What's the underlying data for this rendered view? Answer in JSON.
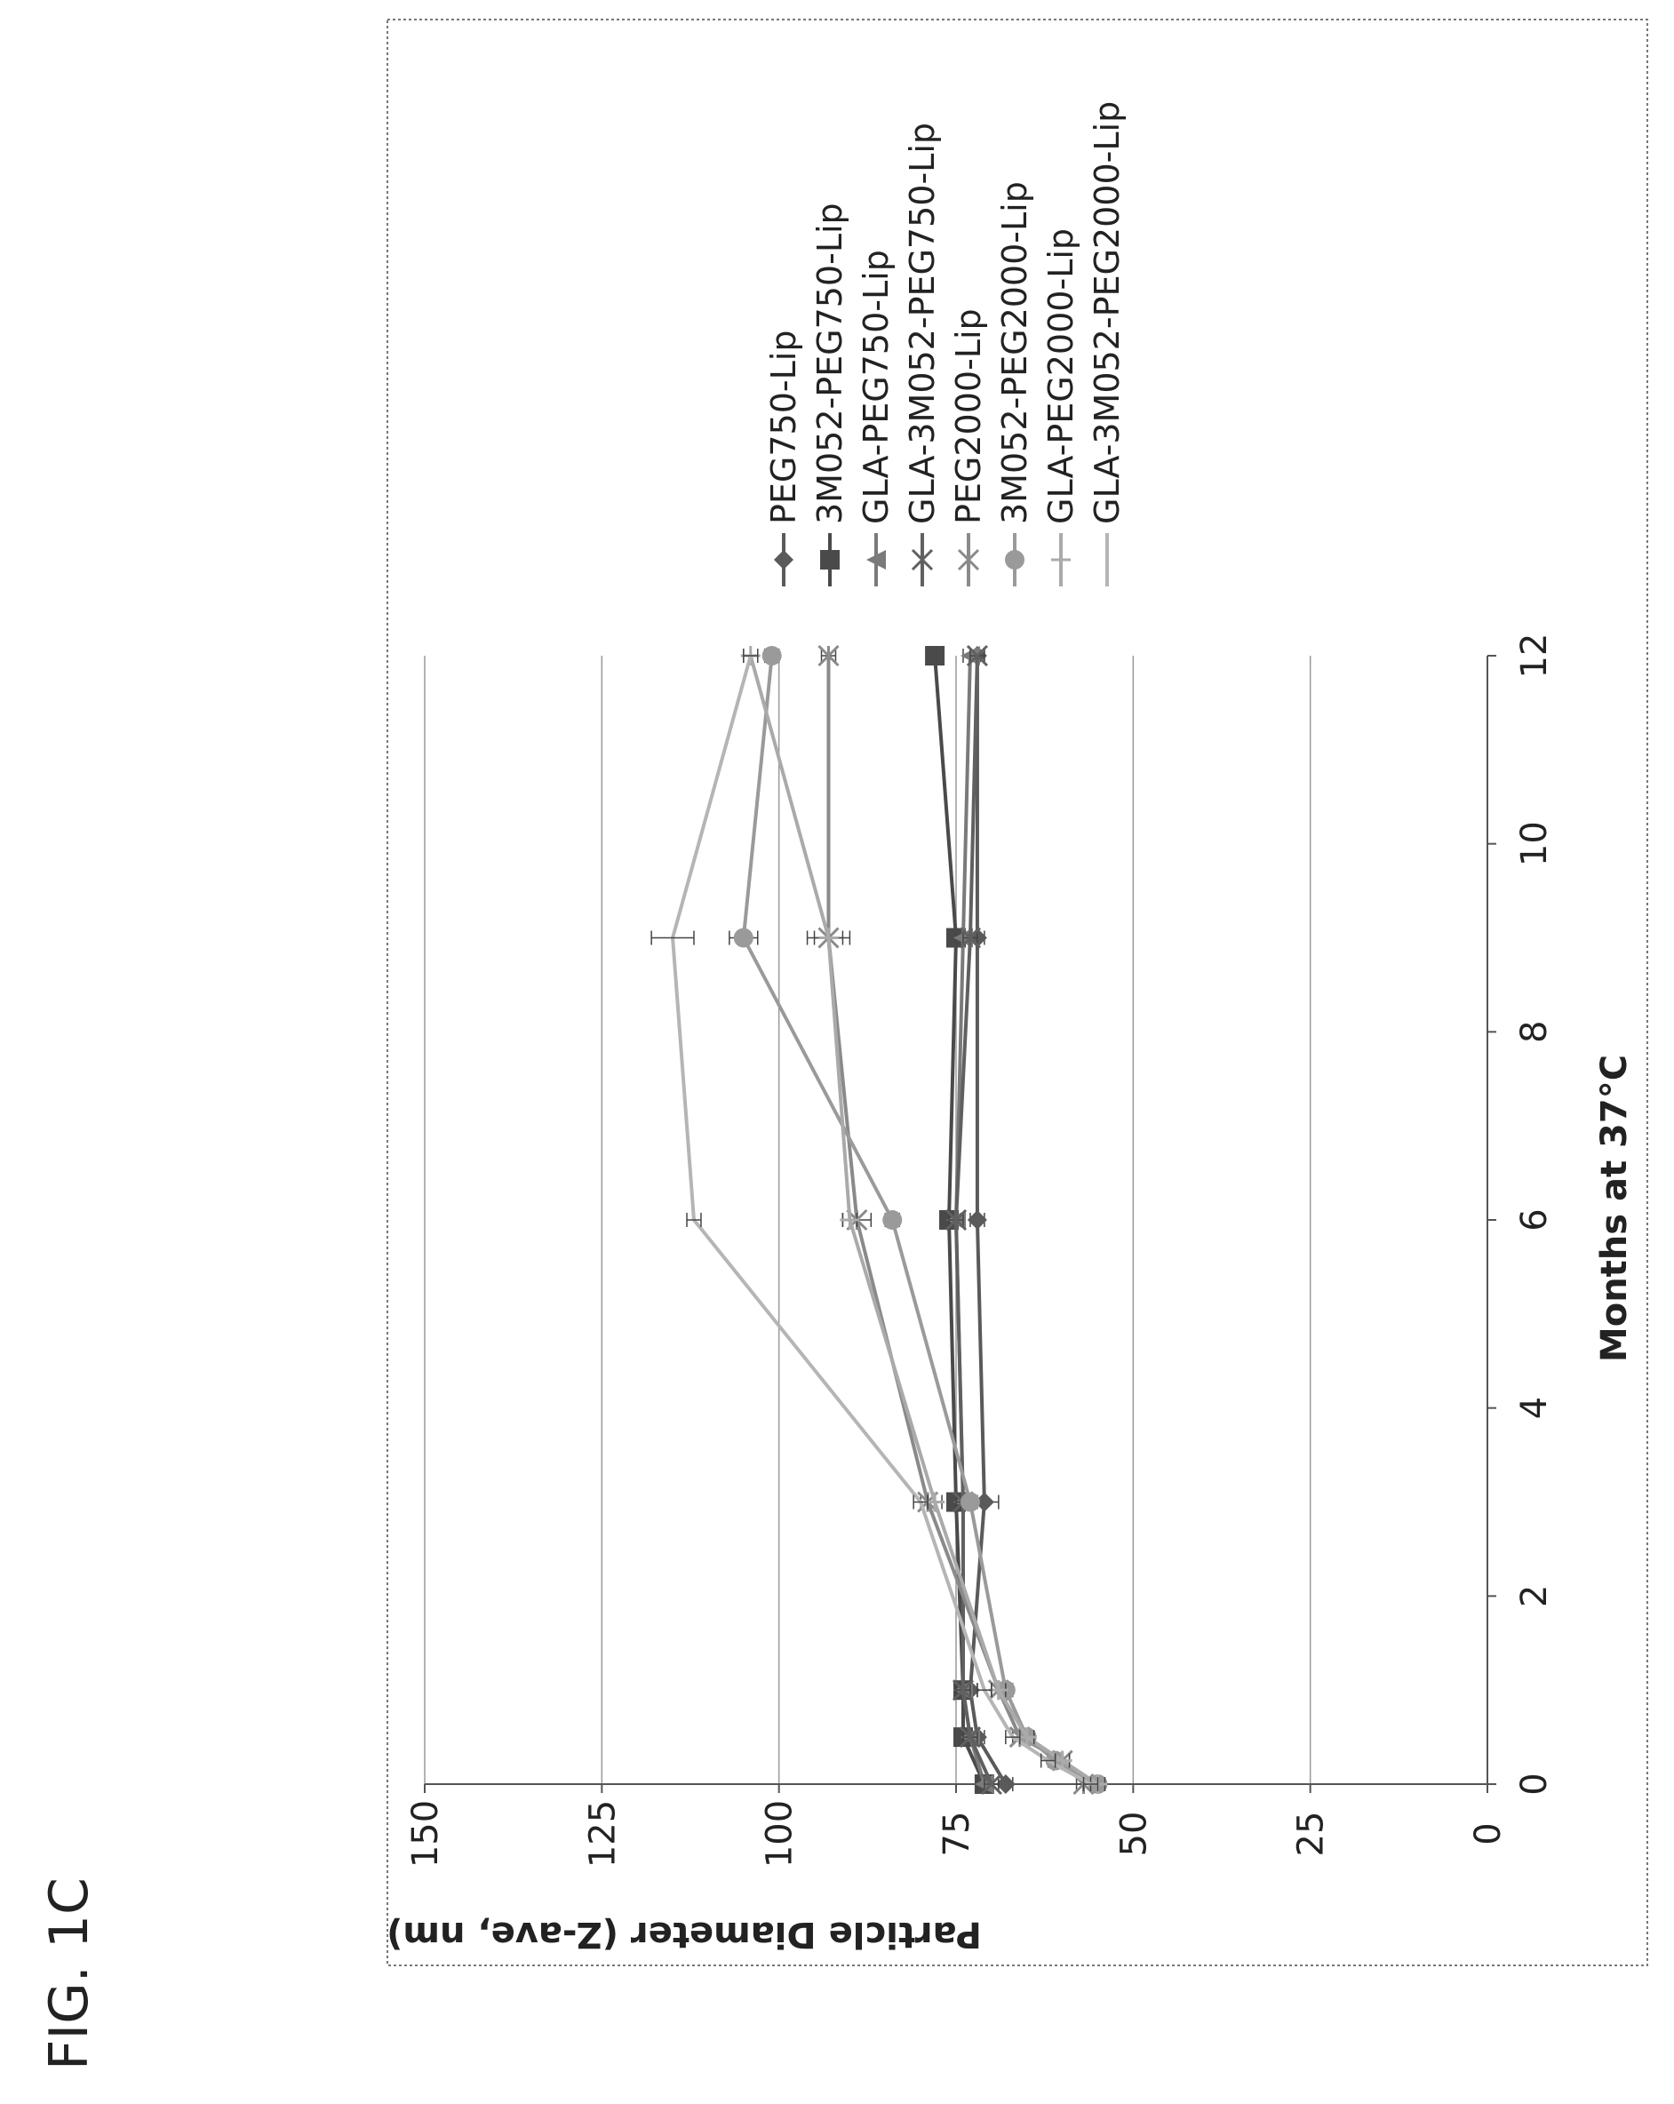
{
  "figure_label": "FIG. 1C",
  "chart_data": {
    "type": "line",
    "title": "",
    "xlabel": "Months at 37°C",
    "ylabel": "Particle Diameter (Z-ave, nm)",
    "xlim": [
      0,
      12
    ],
    "ylim": [
      0,
      150
    ],
    "x_ticks": [
      "0",
      "2",
      "4",
      "6",
      "8",
      "10",
      "12"
    ],
    "y_ticks": [
      "0",
      "25",
      "50",
      "75",
      "100",
      "125",
      "150"
    ],
    "grid": "horizontal",
    "legend_position": "right",
    "orientation": "rotated 90° counter-clockwise",
    "series": [
      {
        "name": "PEG750-Lip",
        "marker": "diamond",
        "color": "#5a5a5a",
        "points": [
          [
            0,
            68
          ],
          [
            0.5,
            72
          ],
          [
            1,
            73
          ],
          [
            3,
            71
          ],
          [
            6,
            72
          ],
          [
            9,
            72
          ],
          [
            12,
            72
          ]
        ],
        "errors": [
          1,
          1,
          1,
          2,
          1,
          1,
          1
        ]
      },
      {
        "name": "3M052-PEG750-Lip",
        "marker": "square",
        "color": "#4a4a4a",
        "points": [
          [
            0,
            71
          ],
          [
            0.5,
            74
          ],
          [
            1,
            74
          ],
          [
            3,
            75
          ],
          [
            6,
            76
          ],
          [
            9,
            75
          ],
          [
            12,
            78
          ]
        ],
        "errors": [
          1,
          1,
          1,
          1,
          1,
          1,
          1
        ]
      },
      {
        "name": "GLA-PEG750-Lip",
        "marker": "triangle",
        "color": "#7a7a7a",
        "points": [
          [
            0,
            71
          ],
          [
            0.5,
            73
          ],
          [
            1,
            74
          ],
          [
            3,
            74
          ],
          [
            6,
            75
          ],
          [
            9,
            74
          ],
          [
            12,
            73
          ]
        ],
        "errors": [
          1,
          1,
          1,
          1,
          1,
          1,
          1
        ]
      },
      {
        "name": "GLA-3M052-PEG750-Lip",
        "marker": "x",
        "color": "#606060",
        "points": [
          [
            0,
            70
          ],
          [
            0.5,
            73
          ],
          [
            1,
            74
          ],
          [
            3,
            74
          ],
          [
            6,
            75
          ],
          [
            9,
            73
          ],
          [
            12,
            72
          ]
        ],
        "errors": [
          1,
          1,
          1,
          1,
          1,
          1,
          1
        ]
      },
      {
        "name": "PEG2000-Lip",
        "marker": "star",
        "color": "#8a8a8a",
        "points": [
          [
            0,
            57
          ],
          [
            0.25,
            60
          ],
          [
            0.5,
            66
          ],
          [
            1,
            69
          ],
          [
            3,
            79
          ],
          [
            6,
            89
          ],
          [
            9,
            93
          ],
          [
            12,
            93
          ]
        ],
        "errors": [
          1,
          1,
          1,
          1,
          1,
          2,
          2,
          1
        ]
      },
      {
        "name": "3M052-PEG2000-Lip",
        "marker": "circle",
        "color": "#9a9a9a",
        "points": [
          [
            0,
            55
          ],
          [
            0.25,
            61
          ],
          [
            0.5,
            65
          ],
          [
            1,
            68
          ],
          [
            3,
            73
          ],
          [
            6,
            84
          ],
          [
            9,
            105
          ],
          [
            12,
            101
          ]
        ],
        "errors": [
          1,
          1,
          1,
          1,
          1,
          1,
          2,
          1
        ]
      },
      {
        "name": "GLA-PEG2000-Lip",
        "marker": "plus",
        "color": "#aaaaaa",
        "points": [
          [
            0,
            55
          ],
          [
            0.25,
            60
          ],
          [
            0.5,
            65
          ],
          [
            1,
            69
          ],
          [
            3,
            78
          ],
          [
            6,
            90
          ],
          [
            9,
            93
          ],
          [
            12,
            104
          ]
        ],
        "errors": [
          1,
          1,
          1,
          1,
          1,
          1,
          3,
          1
        ]
      },
      {
        "name": "GLA-3M052-PEG2000-Lip",
        "marker": "none",
        "color": "#b5b5b5",
        "points": [
          [
            0,
            56
          ],
          [
            0.25,
            62
          ],
          [
            0.5,
            67
          ],
          [
            1,
            71
          ],
          [
            3,
            80
          ],
          [
            6,
            112
          ],
          [
            9,
            115
          ],
          [
            12,
            104
          ]
        ],
        "errors": [
          1,
          1,
          1,
          1,
          1,
          1,
          3,
          1
        ]
      }
    ]
  }
}
